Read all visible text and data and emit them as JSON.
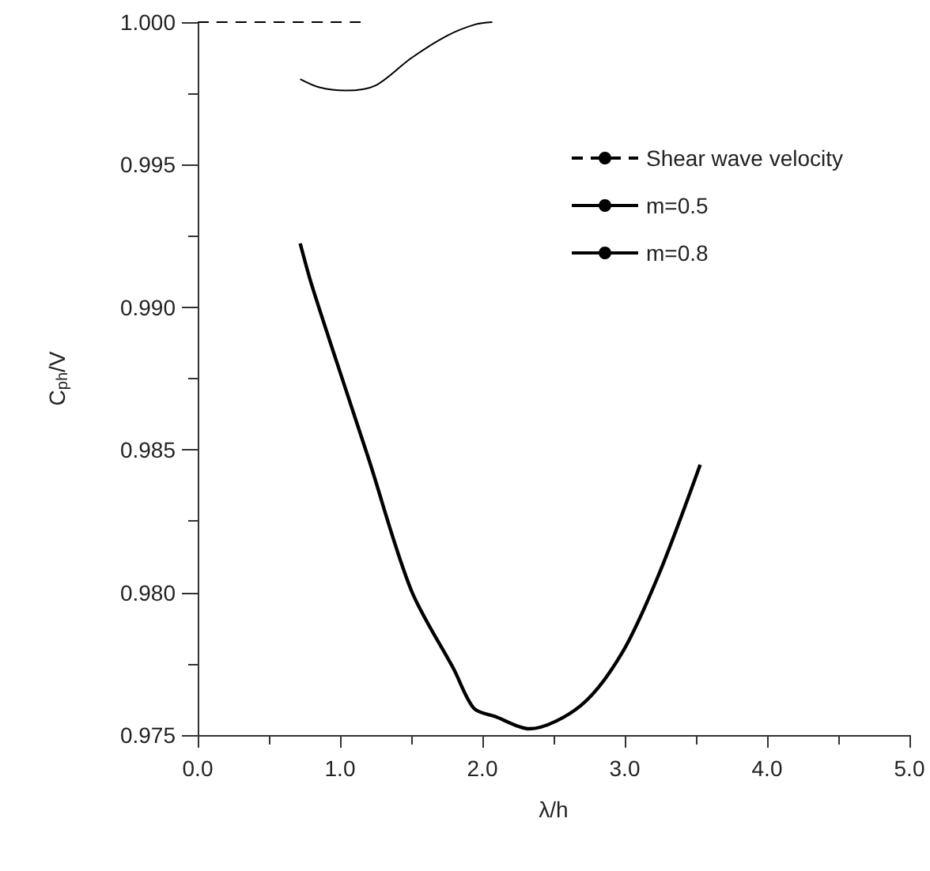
{
  "chart_data": {
    "type": "line",
    "xlabel": "λ/h",
    "ylabel": "C$_{ph}$/V",
    "xlim": [
      0,
      5
    ],
    "ylim": [
      0.975,
      1.0
    ],
    "xticks": [
      {
        "value": 0,
        "label": "0.0"
      },
      {
        "value": 1,
        "label": "1.0"
      },
      {
        "value": 2,
        "label": "2.0"
      },
      {
        "value": 3,
        "label": "3.0"
      },
      {
        "value": 4,
        "label": "4.0"
      },
      {
        "value": 5,
        "label": "5.0"
      }
    ],
    "yticks": [
      {
        "value": 0.975,
        "label": "0.975"
      },
      {
        "value": 0.98,
        "label": "0.980"
      },
      {
        "value": 0.985,
        "label": "0.985"
      },
      {
        "value": 0.99,
        "label": "0.990"
      },
      {
        "value": 0.995,
        "label": "0.995"
      },
      {
        "value": 1.0,
        "label": "1.000"
      }
    ],
    "grid": false,
    "legend": "top right",
    "marker": "none",
    "series": [
      {
        "name": "Shear wave velocity",
        "color": "#000000",
        "line_style": "dashed",
        "x": [
          0,
          1.2
        ],
        "values": [
          1.0,
          1.0
        ]
      },
      {
        "name": "m=0.5",
        "color": "#000000",
        "line_style": "solid",
        "x": [
          0.72,
          0.85,
          1.04,
          1.25,
          1.5,
          1.75,
          1.95,
          2.07
        ],
        "values": [
          0.998,
          0.99772,
          0.9976,
          0.99778,
          0.99874,
          0.99952,
          0.99992,
          1.0
        ]
      },
      {
        "name": "m=0.8",
        "color": "#000000",
        "line_style": "solid",
        "x": [
          0.72,
          0.8,
          0.98,
          1.2,
          1.5,
          1.8,
          1.94,
          2.09,
          2.33,
          2.69,
          2.98,
          3.24,
          3.53
        ],
        "values": [
          0.99224,
          0.9908,
          0.98803,
          0.9847,
          0.98008,
          0.9773,
          0.97594,
          0.97565,
          0.97522,
          0.97603,
          0.97787,
          0.98064,
          0.98448
        ]
      }
    ]
  }
}
